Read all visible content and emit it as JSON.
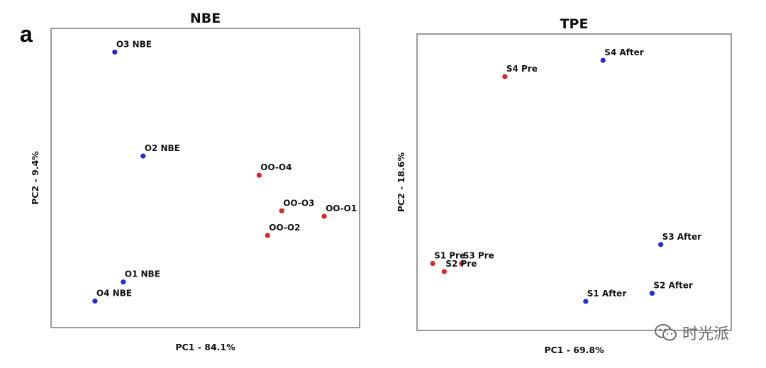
{
  "figure": {
    "panel_letter": "a"
  },
  "watermark": {
    "text": "时光派",
    "icon": "wechat-icon",
    "color": "#6b6b6b"
  },
  "colors": {
    "blue": "#1f2fd6",
    "red": "#d62a2a",
    "frame": "#7a7a7a"
  },
  "chart_data": [
    {
      "type": "scatter",
      "title": "NBE",
      "xlabel": "PC1 - 84.1%",
      "ylabel": "PC2 - 9.4%",
      "grid": false,
      "xlim": [
        0,
        10
      ],
      "ylim": [
        0,
        10
      ],
      "points": [
        {
          "label": "O3 NBE",
          "x": 1.8,
          "y": 9.6,
          "color": "blue"
        },
        {
          "label": "O2 NBE",
          "x": 2.8,
          "y": 5.8,
          "color": "blue"
        },
        {
          "label": "O1 NBE",
          "x": 2.1,
          "y": 1.2,
          "color": "blue"
        },
        {
          "label": "O4 NBE",
          "x": 1.1,
          "y": 0.5,
          "color": "blue"
        },
        {
          "label": "OO-O4",
          "x": 6.9,
          "y": 5.1,
          "color": "red"
        },
        {
          "label": "OO-O3",
          "x": 7.7,
          "y": 3.8,
          "color": "red"
        },
        {
          "label": "OO-O1",
          "x": 9.2,
          "y": 3.6,
          "color": "red"
        },
        {
          "label": "OO-O2",
          "x": 7.2,
          "y": 2.9,
          "color": "red"
        }
      ]
    },
    {
      "type": "scatter",
      "title": "TPE",
      "xlabel": "PC1 - 69.8%",
      "ylabel": "PC2 - 18.6%",
      "grid": false,
      "xlim": [
        0,
        10
      ],
      "ylim": [
        0,
        10
      ],
      "points": [
        {
          "label": "S4 After",
          "x": 6.0,
          "y": 9.5,
          "color": "blue"
        },
        {
          "label": "S4 Pre",
          "x": 2.6,
          "y": 8.9,
          "color": "red"
        },
        {
          "label": "S3 After",
          "x": 8.0,
          "y": 2.7,
          "color": "blue"
        },
        {
          "label": "S1 Pre",
          "x": 0.1,
          "y": 2.0,
          "color": "red"
        },
        {
          "label": "S3 Pre",
          "x": 1.1,
          "y": 2.0,
          "color": "red"
        },
        {
          "label": "S2 Pre",
          "x": 0.5,
          "y": 1.7,
          "color": "red"
        },
        {
          "label": "S2 After",
          "x": 7.7,
          "y": 0.9,
          "color": "blue"
        },
        {
          "label": "S1 After",
          "x": 5.4,
          "y": 0.6,
          "color": "blue"
        }
      ]
    }
  ]
}
